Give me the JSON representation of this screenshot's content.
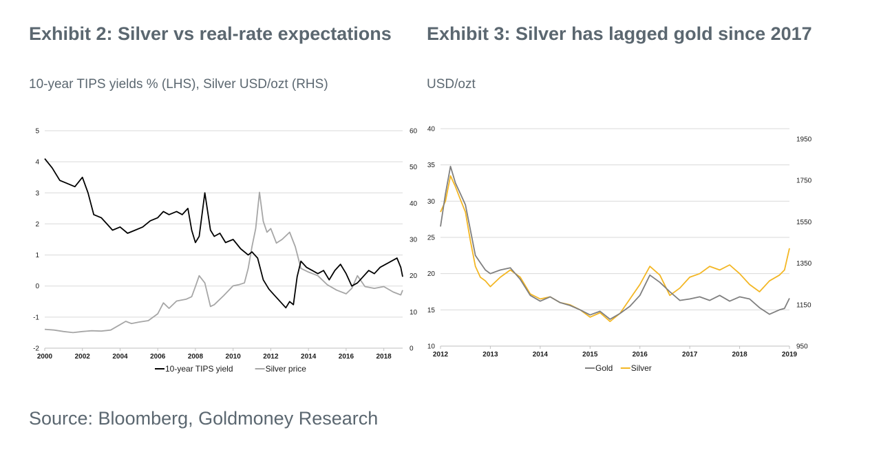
{
  "chart_data": [
    {
      "type": "line",
      "title": "Exhibit 2: Silver vs real-rate expectations",
      "subtitle": "10-year TIPS yields % (LHS), Silver USD/ozt (RHS)",
      "x_ticks": [
        "2000",
        "2002",
        "2004",
        "2006",
        "2008",
        "2010",
        "2012",
        "2014",
        "2016",
        "2018"
      ],
      "xlim": [
        2000,
        2019
      ],
      "ylim_left": [
        -2,
        5
      ],
      "ylim_right": [
        0,
        60
      ],
      "y_ticks_left": [
        "-2",
        "-1",
        "0",
        "1",
        "2",
        "3",
        "4",
        "5"
      ],
      "y_ticks_right": [
        "0",
        "10",
        "20",
        "30",
        "40",
        "50",
        "60"
      ],
      "grid": "horizontal",
      "legend_position": "bottom",
      "series": [
        {
          "name": "10-year TIPS yield",
          "axis": "left",
          "color": "#000000",
          "x": [
            2000.0,
            2000.4,
            2000.8,
            2001.2,
            2001.6,
            2002.0,
            2002.3,
            2002.6,
            2003.0,
            2003.3,
            2003.6,
            2004.0,
            2004.4,
            2004.8,
            2005.2,
            2005.6,
            2006.0,
            2006.3,
            2006.6,
            2007.0,
            2007.3,
            2007.6,
            2007.8,
            2008.0,
            2008.2,
            2008.5,
            2008.8,
            2009.0,
            2009.3,
            2009.6,
            2010.0,
            2010.4,
            2010.8,
            2011.0,
            2011.3,
            2011.6,
            2011.9,
            2012.2,
            2012.5,
            2012.8,
            2013.0,
            2013.2,
            2013.4,
            2013.6,
            2013.9,
            2014.2,
            2014.5,
            2014.8,
            2015.1,
            2015.4,
            2015.7,
            2016.0,
            2016.3,
            2016.6,
            2016.9,
            2017.2,
            2017.5,
            2017.8,
            2018.1,
            2018.4,
            2018.7,
            2018.9,
            2019.0
          ],
          "y": [
            4.1,
            3.8,
            3.4,
            3.3,
            3.2,
            3.5,
            3.0,
            2.3,
            2.2,
            2.0,
            1.8,
            1.9,
            1.7,
            1.8,
            1.9,
            2.1,
            2.2,
            2.4,
            2.3,
            2.4,
            2.3,
            2.5,
            1.8,
            1.4,
            1.6,
            3.0,
            1.8,
            1.6,
            1.7,
            1.4,
            1.5,
            1.2,
            1.0,
            1.1,
            0.9,
            0.2,
            -0.1,
            -0.3,
            -0.5,
            -0.7,
            -0.5,
            -0.6,
            0.3,
            0.8,
            0.6,
            0.5,
            0.4,
            0.5,
            0.2,
            0.5,
            0.7,
            0.4,
            0.0,
            0.1,
            0.3,
            0.5,
            0.4,
            0.6,
            0.7,
            0.8,
            0.9,
            0.6,
            0.3
          ]
        },
        {
          "name": "Silver price",
          "axis": "right",
          "color": "#a6a6a6",
          "x": [
            2000.0,
            2000.5,
            2001.0,
            2001.5,
            2002.0,
            2002.5,
            2003.0,
            2003.5,
            2004.0,
            2004.3,
            2004.6,
            2005.0,
            2005.5,
            2006.0,
            2006.3,
            2006.6,
            2007.0,
            2007.5,
            2007.8,
            2008.0,
            2008.2,
            2008.5,
            2008.8,
            2009.0,
            2009.5,
            2010.0,
            2010.3,
            2010.6,
            2010.8,
            2011.0,
            2011.2,
            2011.4,
            2011.6,
            2011.8,
            2012.0,
            2012.3,
            2012.6,
            2012.9,
            2013.0,
            2013.3,
            2013.6,
            2014.0,
            2014.5,
            2015.0,
            2015.5,
            2016.0,
            2016.3,
            2016.6,
            2017.0,
            2017.5,
            2018.0,
            2018.5,
            2018.9,
            2019.0
          ],
          "y": [
            5.2,
            5.0,
            4.6,
            4.3,
            4.6,
            4.8,
            4.7,
            5.0,
            6.5,
            7.4,
            6.8,
            7.2,
            7.6,
            9.5,
            12.5,
            11.0,
            13.0,
            13.5,
            14.2,
            17.0,
            20.0,
            18.0,
            11.5,
            12.0,
            14.5,
            17.2,
            17.5,
            18.0,
            22.0,
            28.0,
            33.0,
            43.0,
            35.0,
            32.0,
            33.0,
            29.0,
            30.0,
            31.5,
            32.0,
            28.0,
            22.0,
            21.0,
            20.0,
            17.5,
            16.0,
            15.0,
            16.5,
            20.0,
            17.0,
            16.5,
            17.0,
            15.5,
            14.7,
            16.0
          ]
        }
      ],
      "x_axis_labels": [
        "2000",
        "2002",
        "2004",
        "2006",
        "2008",
        "2010",
        "2012",
        "2014",
        "2016",
        "2018"
      ]
    },
    {
      "type": "line",
      "title": "Exhibit 3: Silver has lagged gold since 2017",
      "subtitle": "USD/ozt",
      "x_ticks": [
        "2012",
        "2013",
        "2014",
        "2015",
        "2016",
        "2017",
        "2018",
        "2019"
      ],
      "xlim": [
        2012,
        2019
      ],
      "ylim_left": [
        10,
        40
      ],
      "ylim_right": [
        950,
        2000
      ],
      "y_ticks_left": [
        "10",
        "15",
        "20",
        "25",
        "30",
        "35",
        "40"
      ],
      "y_ticks_right": [
        "950",
        "1150",
        "1350",
        "1550",
        "1750",
        "1950"
      ],
      "grid": "horizontal",
      "legend_position": "bottom",
      "series": [
        {
          "name": "Gold",
          "axis": "left",
          "color": "#7f7f7f",
          "x": [
            2012.0,
            2012.1,
            2012.2,
            2012.3,
            2012.4,
            2012.5,
            2012.6,
            2012.7,
            2012.8,
            2012.9,
            2013.0,
            2013.2,
            2013.4,
            2013.6,
            2013.8,
            2014.0,
            2014.2,
            2014.4,
            2014.6,
            2014.8,
            2015.0,
            2015.2,
            2015.4,
            2015.6,
            2015.8,
            2016.0,
            2016.2,
            2016.4,
            2016.6,
            2016.8,
            2017.0,
            2017.2,
            2017.4,
            2017.6,
            2017.8,
            2018.0,
            2018.2,
            2018.4,
            2018.6,
            2018.8,
            2018.9,
            2019.0
          ],
          "y": [
            26.5,
            31.0,
            34.8,
            32.5,
            31.0,
            29.5,
            26.0,
            22.5,
            21.5,
            20.5,
            20.0,
            20.5,
            20.8,
            19.2,
            17.0,
            16.2,
            16.8,
            16.0,
            15.6,
            15.0,
            14.3,
            14.8,
            13.7,
            14.5,
            15.5,
            17.0,
            19.8,
            18.8,
            17.5,
            16.3,
            16.5,
            16.8,
            16.3,
            17.0,
            16.2,
            16.8,
            16.5,
            15.3,
            14.4,
            15.0,
            15.2,
            16.6
          ]
        },
        {
          "name": "Silver",
          "axis": "left",
          "color": "#f3b623",
          "x": [
            2012.0,
            2012.1,
            2012.2,
            2012.3,
            2012.4,
            2012.5,
            2012.6,
            2012.7,
            2012.8,
            2012.9,
            2013.0,
            2013.2,
            2013.4,
            2013.6,
            2013.8,
            2014.0,
            2014.2,
            2014.4,
            2014.6,
            2014.8,
            2015.0,
            2015.2,
            2015.4,
            2015.6,
            2015.8,
            2016.0,
            2016.2,
            2016.4,
            2016.6,
            2016.8,
            2017.0,
            2017.2,
            2017.4,
            2017.6,
            2017.8,
            2018.0,
            2018.2,
            2018.4,
            2018.6,
            2018.8,
            2018.9,
            2019.0
          ],
          "y": [
            28.5,
            30.0,
            33.5,
            32.0,
            30.2,
            28.5,
            24.5,
            21.0,
            19.5,
            19.0,
            18.2,
            19.5,
            20.5,
            19.5,
            17.2,
            16.5,
            16.8,
            16.0,
            15.7,
            15.0,
            14.0,
            14.6,
            13.4,
            14.5,
            16.5,
            18.5,
            21.0,
            19.8,
            17.0,
            18.0,
            19.5,
            20.0,
            21.0,
            20.5,
            21.2,
            20.0,
            18.5,
            17.5,
            19.0,
            19.8,
            20.5,
            23.5
          ]
        }
      ],
      "x_axis_labels": [
        "2012",
        "2013",
        "2014",
        "2015",
        "2016",
        "2017",
        "2018",
        "2019"
      ]
    }
  ],
  "source_text": "Source: Bloomberg, Goldmoney Research"
}
